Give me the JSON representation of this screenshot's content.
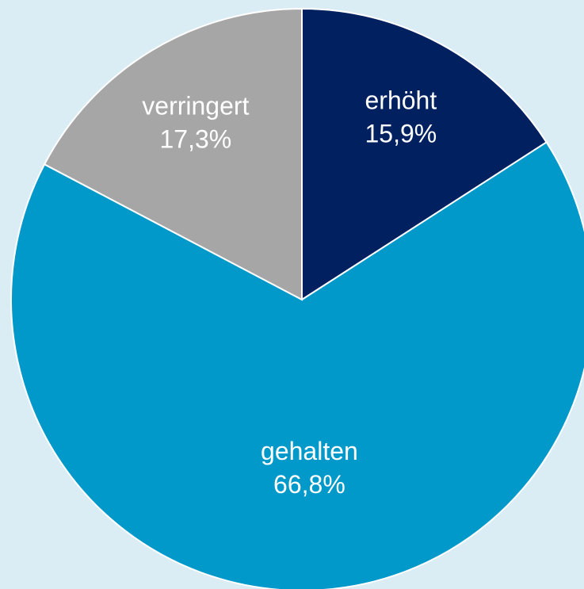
{
  "chart_data": {
    "type": "pie",
    "categories": [
      "erhöht",
      "gehalten",
      "verringert"
    ],
    "values": [
      15.9,
      66.8,
      17.3
    ],
    "value_labels": [
      "15,9%",
      "66,8%",
      "17,3%"
    ],
    "colors": [
      "#002060",
      "#0099c9",
      "#a6a6a6"
    ],
    "start_angle": 0,
    "direction": "clockwise"
  }
}
